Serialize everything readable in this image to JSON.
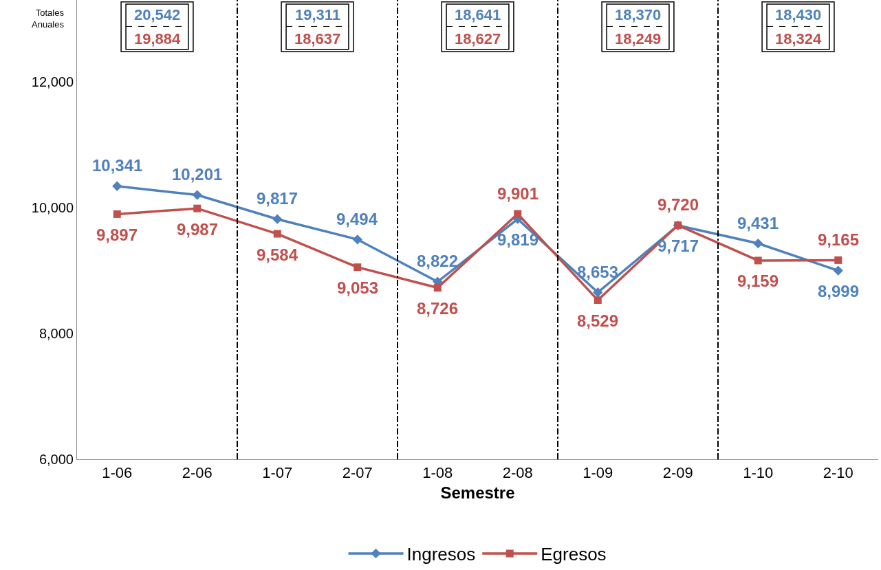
{
  "chart_data": {
    "type": "line",
    "xlabel": "Semestre",
    "categories": [
      "1-06",
      "2-06",
      "1-07",
      "2-07",
      "1-08",
      "2-08",
      "1-09",
      "2-09",
      "1-10",
      "2-10"
    ],
    "series": [
      {
        "name": "Ingresos",
        "color": "#4f81bd",
        "marker": "diamond",
        "values": [
          10341,
          10201,
          9817,
          9494,
          8822,
          9819,
          8653,
          9717,
          9431,
          8999
        ],
        "value_labels": [
          "10,341",
          "10,201",
          "9,817",
          "9,494",
          "8,822",
          "9,819",
          "8,653",
          "9,717",
          "9,431",
          "8,999"
        ]
      },
      {
        "name": "Egresos",
        "color": "#c0504d",
        "marker": "square",
        "values": [
          9897,
          9987,
          9584,
          9053,
          8726,
          9901,
          8529,
          9720,
          9159,
          9165
        ],
        "value_labels": [
          "9,897",
          "9,987",
          "9,584",
          "9,053",
          "8,726",
          "9,901",
          "8,529",
          "9,720",
          "9,159",
          "9,165"
        ]
      }
    ],
    "ylim": [
      6000,
      13300
    ],
    "yticks": [
      {
        "value": 6000,
        "label": "6,000"
      },
      {
        "value": 8000,
        "label": "8,000"
      },
      {
        "value": 10000,
        "label": "10,000"
      },
      {
        "value": 12000,
        "label": "12,000"
      }
    ],
    "annotations": [
      "Totales Anuales",
      "20,542",
      "19,884",
      "19,311",
      "18,637",
      "18,641",
      "18,627",
      "18,370",
      "18,249",
      "18,430",
      "18,324"
    ],
    "legend": "bottom"
  }
}
